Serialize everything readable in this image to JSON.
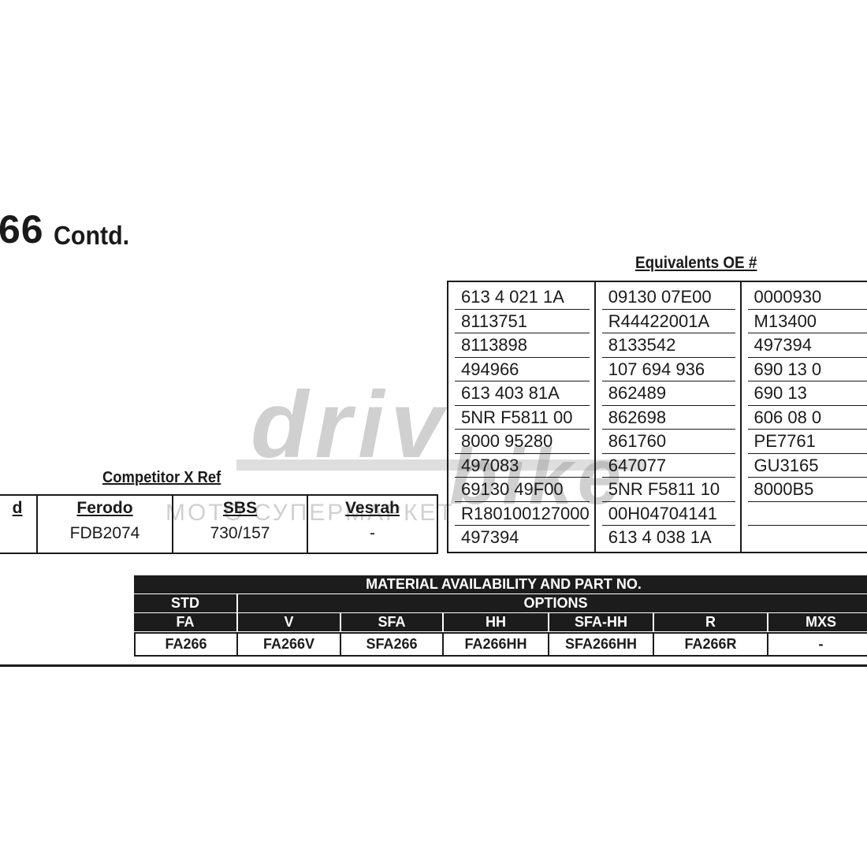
{
  "title": {
    "number": "66",
    "suffix": "Contd."
  },
  "equivalents": {
    "heading": "Equivalents OE #",
    "columns": [
      [
        "613 4 021 1A",
        "8113751",
        "8113898",
        "494966",
        "613 403 81A",
        "5NR F5811 00",
        "8000 95280",
        "497083",
        "69130 49F00",
        "R180100127000",
        "497394"
      ],
      [
        "09130 07E00",
        "R44422001A",
        "8133542",
        "107 694 936",
        "862489",
        "862698",
        "861760",
        "647077",
        "5NR F5811 10",
        "00H04704141",
        "613 4 038 1A"
      ],
      [
        "0000930",
        "M13400",
        "497394",
        "690 13 0",
        "690 13",
        "606 08 0",
        "PE7761",
        "GU3165",
        "8000B5",
        "",
        ""
      ]
    ]
  },
  "competitor": {
    "heading": "Competitor X Ref",
    "columns": [
      {
        "header": "d",
        "value": ""
      },
      {
        "header": "Ferodo",
        "value": "FDB2074"
      },
      {
        "header": "SBS",
        "value": "730/157"
      },
      {
        "header": "Vesrah",
        "value": "-"
      }
    ]
  },
  "material": {
    "title": "MATERIAL AVAILABILITY AND PART NO.",
    "std_label": "STD",
    "options_label": "OPTIONS",
    "headers": [
      "FA",
      "V",
      "SFA",
      "HH",
      "SFA-HH",
      "R",
      "MXS"
    ],
    "values": [
      "FA266",
      "FA266V",
      "SFA266",
      "FA266HH",
      "SFA266HH",
      "FA266R",
      "-"
    ]
  },
  "watermark": {
    "brand_top": "driv",
    "brand_bottom": "bike",
    "tagline": "МОТО СУПЕРМАРКЕТ",
    "color": "#969696"
  }
}
